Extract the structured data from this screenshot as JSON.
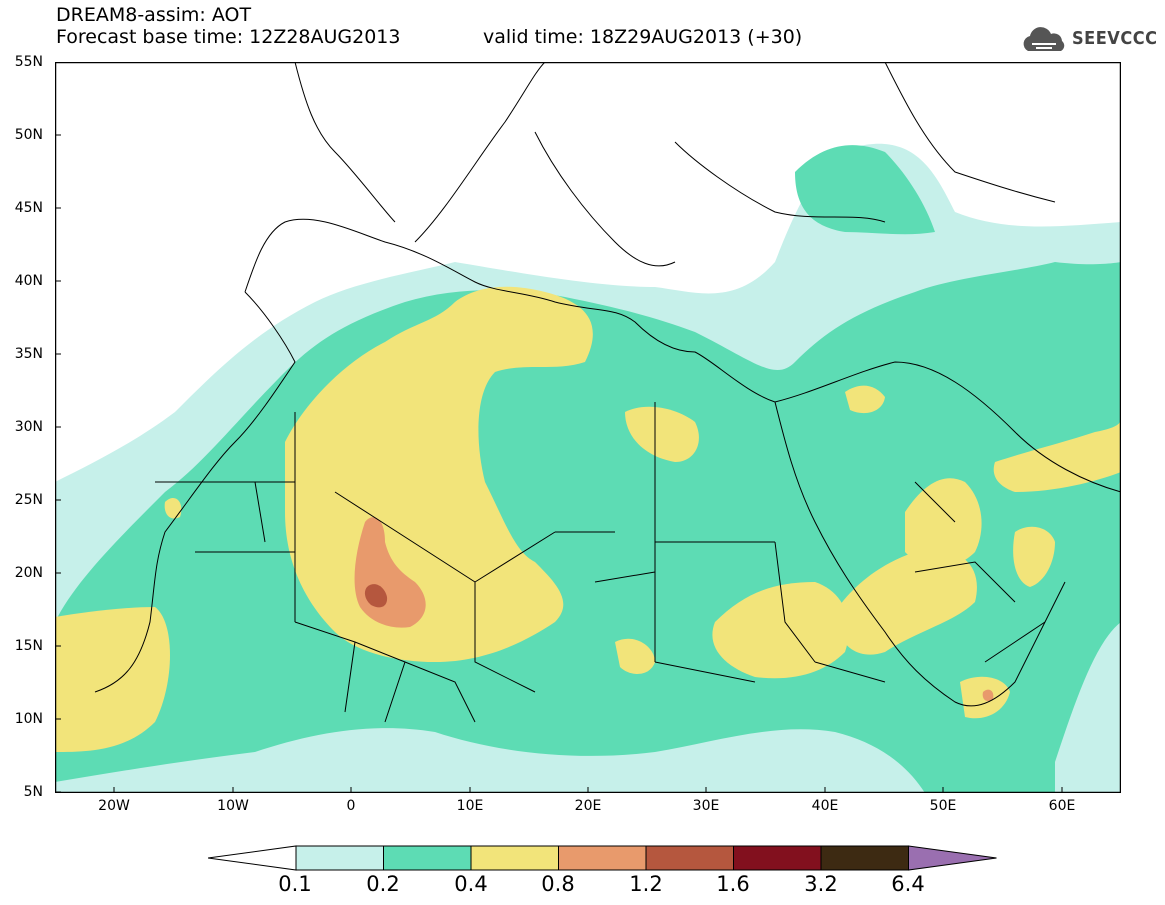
{
  "title": {
    "line1": "DREAM8-assim: AOT",
    "line2": "Forecast base time: 12Z28AUG2013",
    "valid": "valid time: 18Z29AUG2013 (+30)"
  },
  "logo": {
    "text": "SEEVCCC",
    "icon": "cloud-icon"
  },
  "map": {
    "lon_range": [
      -25,
      65
    ],
    "lat_range": [
      5,
      55
    ],
    "lat_ticks": [
      "55N",
      "50N",
      "45N",
      "40N",
      "35N",
      "30N",
      "25N",
      "20N",
      "15N",
      "10N",
      "5N"
    ],
    "lon_ticks": [
      "20W",
      "10W",
      "0",
      "10E",
      "20E",
      "30E",
      "40E",
      "50E",
      "60E"
    ]
  },
  "colorbar": {
    "labels": [
      "0.1",
      "0.2",
      "0.4",
      "0.8",
      "1.2",
      "1.6",
      "3.2",
      "6.4"
    ],
    "colors": [
      "#ffffff",
      "#c6f0ea",
      "#5ddcb4",
      "#f2e47a",
      "#e89a6c",
      "#b5573e",
      "#82101e",
      "#3d2a12",
      "#9a6fb0"
    ]
  }
}
